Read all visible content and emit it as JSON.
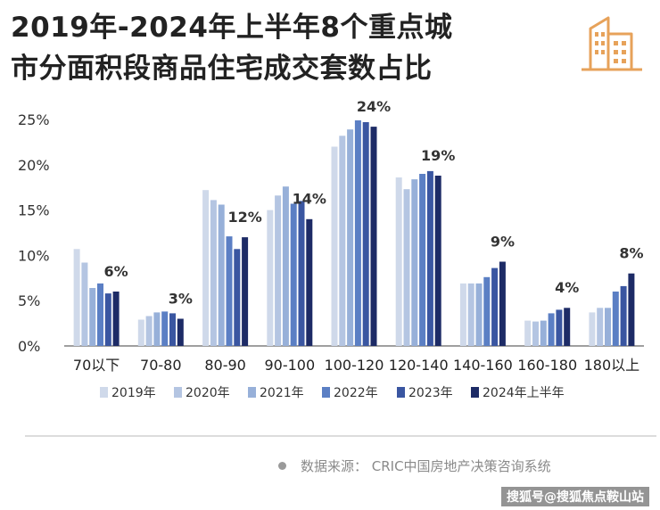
{
  "title": {
    "line1": "2019年-2024年上半年8个重点城",
    "line2": "市分面积段商品住宅成交套数占比"
  },
  "chart_data": {
    "type": "bar",
    "categories": [
      "70以下",
      "70-80",
      "80-90",
      "90-100",
      "100-120",
      "120-140",
      "140-160",
      "160-180",
      "180以上"
    ],
    "series": [
      {
        "name": "2019年",
        "values": [
          10.7,
          2.9,
          17.2,
          15.0,
          22.0,
          18.6,
          6.9,
          2.8,
          3.7
        ]
      },
      {
        "name": "2020年",
        "values": [
          9.2,
          3.3,
          16.1,
          16.6,
          23.2,
          17.3,
          6.9,
          2.7,
          4.2
        ]
      },
      {
        "name": "2021年",
        "values": [
          6.4,
          3.7,
          15.6,
          17.6,
          23.9,
          18.4,
          6.9,
          2.8,
          4.2
        ]
      },
      {
        "name": "2022年",
        "values": [
          6.9,
          3.8,
          12.1,
          15.7,
          24.9,
          19.0,
          7.6,
          3.6,
          6.0
        ]
      },
      {
        "name": "2023年",
        "values": [
          5.8,
          3.6,
          10.7,
          16.0,
          24.7,
          19.3,
          8.6,
          4.0,
          6.6
        ]
      },
      {
        "name": "2024年上半年",
        "values": [
          6.0,
          3.0,
          12.0,
          14.0,
          24.2,
          18.8,
          9.3,
          4.2,
          8.0
        ]
      }
    ],
    "data_labels": [
      "6%",
      "3%",
      "12%",
      "14%",
      "24%",
      "19%",
      "9%",
      "4%",
      "8%"
    ],
    "yticks": [
      "0%",
      "5%",
      "10%",
      "15%",
      "20%",
      "25%"
    ],
    "ylim": [
      0,
      25
    ],
    "grid": false,
    "legend_position": "bottom",
    "colors": [
      "#cfd9ea",
      "#b4c5e2",
      "#97b0d9",
      "#5b7fc4",
      "#3a56a1",
      "#1d2b66"
    ]
  },
  "source": {
    "text": "数据来源：  CRIC中国房地产决策咨询系统"
  },
  "credit": {
    "text": "搜狐号@搜狐焦点鞍山站"
  },
  "colors": {
    "logo": "#e7a25a"
  },
  "icons": {
    "logo": "building-icon"
  }
}
